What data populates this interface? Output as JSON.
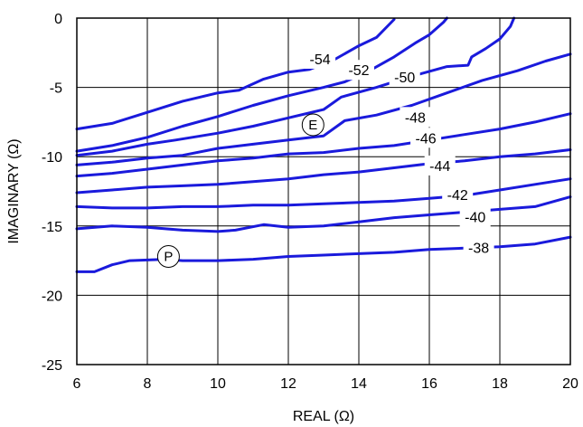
{
  "chart_data": {
    "type": "line",
    "title": "",
    "xlabel": "REAL (Ω)",
    "ylabel": "IMAGINARY (Ω)",
    "xlim": [
      6,
      20
    ],
    "ylim": [
      -25,
      0
    ],
    "x_ticks": [
      "6",
      "8",
      "10",
      "12",
      "14",
      "16",
      "18",
      "20"
    ],
    "y_ticks": [
      "0",
      "-5",
      "-10",
      "-15",
      "-20",
      "-25"
    ],
    "grid": true,
    "line_color": "#1a1adc",
    "series": [
      {
        "name": "-54",
        "points": [
          [
            6,
            -8.0
          ],
          [
            7,
            -7.6
          ],
          [
            8,
            -6.8
          ],
          [
            9,
            -6.0
          ],
          [
            10,
            -5.4
          ],
          [
            10.6,
            -5.2
          ],
          [
            11.3,
            -4.4
          ],
          [
            12,
            -3.9
          ],
          [
            12.6,
            -3.7
          ],
          [
            13.3,
            -3.0
          ],
          [
            14,
            -2.0
          ],
          [
            14.5,
            -1.4
          ],
          [
            15,
            -0.1
          ]
        ]
      },
      {
        "name": "-52",
        "points": [
          [
            6,
            -9.6
          ],
          [
            7,
            -9.2
          ],
          [
            8,
            -8.6
          ],
          [
            9,
            -7.8
          ],
          [
            10,
            -7.1
          ],
          [
            11,
            -6.3
          ],
          [
            12,
            -5.6
          ],
          [
            13,
            -5.0
          ],
          [
            13.6,
            -4.6
          ],
          [
            14.3,
            -3.8
          ],
          [
            15,
            -2.8
          ],
          [
            15.6,
            -1.8
          ],
          [
            16,
            -1.2
          ],
          [
            16.4,
            -0.3
          ],
          [
            16.5,
            0
          ]
        ]
      },
      {
        "name": "-50",
        "points": [
          [
            6,
            -9.9
          ],
          [
            7,
            -9.6
          ],
          [
            8,
            -9.1
          ],
          [
            8.8,
            -8.8
          ],
          [
            10,
            -8.3
          ],
          [
            11,
            -7.8
          ],
          [
            12,
            -7.2
          ],
          [
            13,
            -6.6
          ],
          [
            13.5,
            -5.7
          ],
          [
            14.5,
            -5.0
          ],
          [
            15.5,
            -4.2
          ],
          [
            16.5,
            -3.5
          ],
          [
            17.1,
            -3.4
          ],
          [
            17.2,
            -2.8
          ],
          [
            17.6,
            -2.2
          ],
          [
            18,
            -1.5
          ],
          [
            18.3,
            -0.6
          ],
          [
            18.4,
            0
          ]
        ]
      },
      {
        "name": "-48",
        "points": [
          [
            6,
            -10.6
          ],
          [
            7,
            -10.4
          ],
          [
            8,
            -10.1
          ],
          [
            9,
            -9.9
          ],
          [
            10,
            -9.4
          ],
          [
            11,
            -9.1
          ],
          [
            12,
            -8.8
          ],
          [
            13,
            -8.5
          ],
          [
            13.6,
            -7.4
          ],
          [
            14.5,
            -7.0
          ],
          [
            15.5,
            -6.3
          ],
          [
            16.5,
            -5.4
          ],
          [
            17.5,
            -4.5
          ],
          [
            18.5,
            -3.8
          ],
          [
            19.3,
            -3.1
          ],
          [
            20,
            -2.6
          ]
        ]
      },
      {
        "name": "-46",
        "points": [
          [
            6,
            -11.4
          ],
          [
            7,
            -11.2
          ],
          [
            8,
            -10.9
          ],
          [
            9,
            -10.6
          ],
          [
            10,
            -10.3
          ],
          [
            11,
            -10.1
          ],
          [
            12,
            -9.8
          ],
          [
            13,
            -9.7
          ],
          [
            14,
            -9.4
          ],
          [
            15,
            -9.2
          ],
          [
            16,
            -8.8
          ],
          [
            17,
            -8.4
          ],
          [
            18,
            -8.0
          ],
          [
            19,
            -7.5
          ],
          [
            20,
            -6.9
          ]
        ]
      },
      {
        "name": "-44",
        "points": [
          [
            6,
            -12.6
          ],
          [
            7,
            -12.4
          ],
          [
            8,
            -12.2
          ],
          [
            9,
            -12.1
          ],
          [
            10,
            -12.0
          ],
          [
            11,
            -11.8
          ],
          [
            12,
            -11.6
          ],
          [
            13,
            -11.3
          ],
          [
            14,
            -11.1
          ],
          [
            15,
            -10.8
          ],
          [
            16,
            -10.5
          ],
          [
            17,
            -10.3
          ],
          [
            18,
            -10.0
          ],
          [
            19,
            -9.8
          ],
          [
            20,
            -9.5
          ]
        ]
      },
      {
        "name": "-42",
        "points": [
          [
            6,
            -13.6
          ],
          [
            7,
            -13.7
          ],
          [
            8,
            -13.7
          ],
          [
            9,
            -13.6
          ],
          [
            10,
            -13.6
          ],
          [
            11,
            -13.5
          ],
          [
            12,
            -13.5
          ],
          [
            13,
            -13.4
          ],
          [
            14,
            -13.3
          ],
          [
            15,
            -13.2
          ],
          [
            16,
            -13.0
          ],
          [
            17,
            -12.8
          ],
          [
            18,
            -12.4
          ],
          [
            19,
            -12.0
          ],
          [
            20,
            -11.6
          ]
        ]
      },
      {
        "name": "-40",
        "points": [
          [
            6,
            -15.2
          ],
          [
            7,
            -15.0
          ],
          [
            8,
            -15.1
          ],
          [
            9,
            -15.3
          ],
          [
            10,
            -15.4
          ],
          [
            10.5,
            -15.3
          ],
          [
            11.3,
            -14.9
          ],
          [
            12,
            -15.1
          ],
          [
            13,
            -15.0
          ],
          [
            14,
            -14.7
          ],
          [
            15,
            -14.4
          ],
          [
            16,
            -14.2
          ],
          [
            17,
            -14.0
          ],
          [
            18,
            -13.8
          ],
          [
            19,
            -13.6
          ],
          [
            20,
            -12.9
          ]
        ]
      },
      {
        "name": "-38",
        "points": [
          [
            6,
            -18.3
          ],
          [
            6.5,
            -18.3
          ],
          [
            7,
            -17.8
          ],
          [
            7.5,
            -17.5
          ],
          [
            8.5,
            -17.4
          ],
          [
            9,
            -17.5
          ],
          [
            10,
            -17.5
          ],
          [
            11,
            -17.4
          ],
          [
            12,
            -17.2
          ],
          [
            13,
            -17.1
          ],
          [
            14,
            -17.0
          ],
          [
            15,
            -16.9
          ],
          [
            16,
            -16.7
          ],
          [
            17,
            -16.6
          ],
          [
            18,
            -16.5
          ],
          [
            19,
            -16.3
          ],
          [
            20,
            -15.8
          ]
        ]
      }
    ],
    "contour_labels": [
      {
        "text": "-54",
        "x": 12.9,
        "y": -3.0
      },
      {
        "text": "-52",
        "x": 14.0,
        "y": -3.8
      },
      {
        "text": "-50",
        "x": 15.3,
        "y": -4.3
      },
      {
        "text": "-48",
        "x": 15.6,
        "y": -7.2
      },
      {
        "text": "-46",
        "x": 15.9,
        "y": -8.7
      },
      {
        "text": "-44",
        "x": 16.3,
        "y": -10.7
      },
      {
        "text": "-42",
        "x": 16.8,
        "y": -12.8
      },
      {
        "text": "-40",
        "x": 17.3,
        "y": -14.4
      },
      {
        "text": "-38",
        "x": 17.4,
        "y": -16.6
      }
    ],
    "markers": [
      {
        "text": "E",
        "x": 12.7,
        "y": -7.7
      },
      {
        "text": "P",
        "x": 8.6,
        "y": -17.2
      }
    ]
  }
}
